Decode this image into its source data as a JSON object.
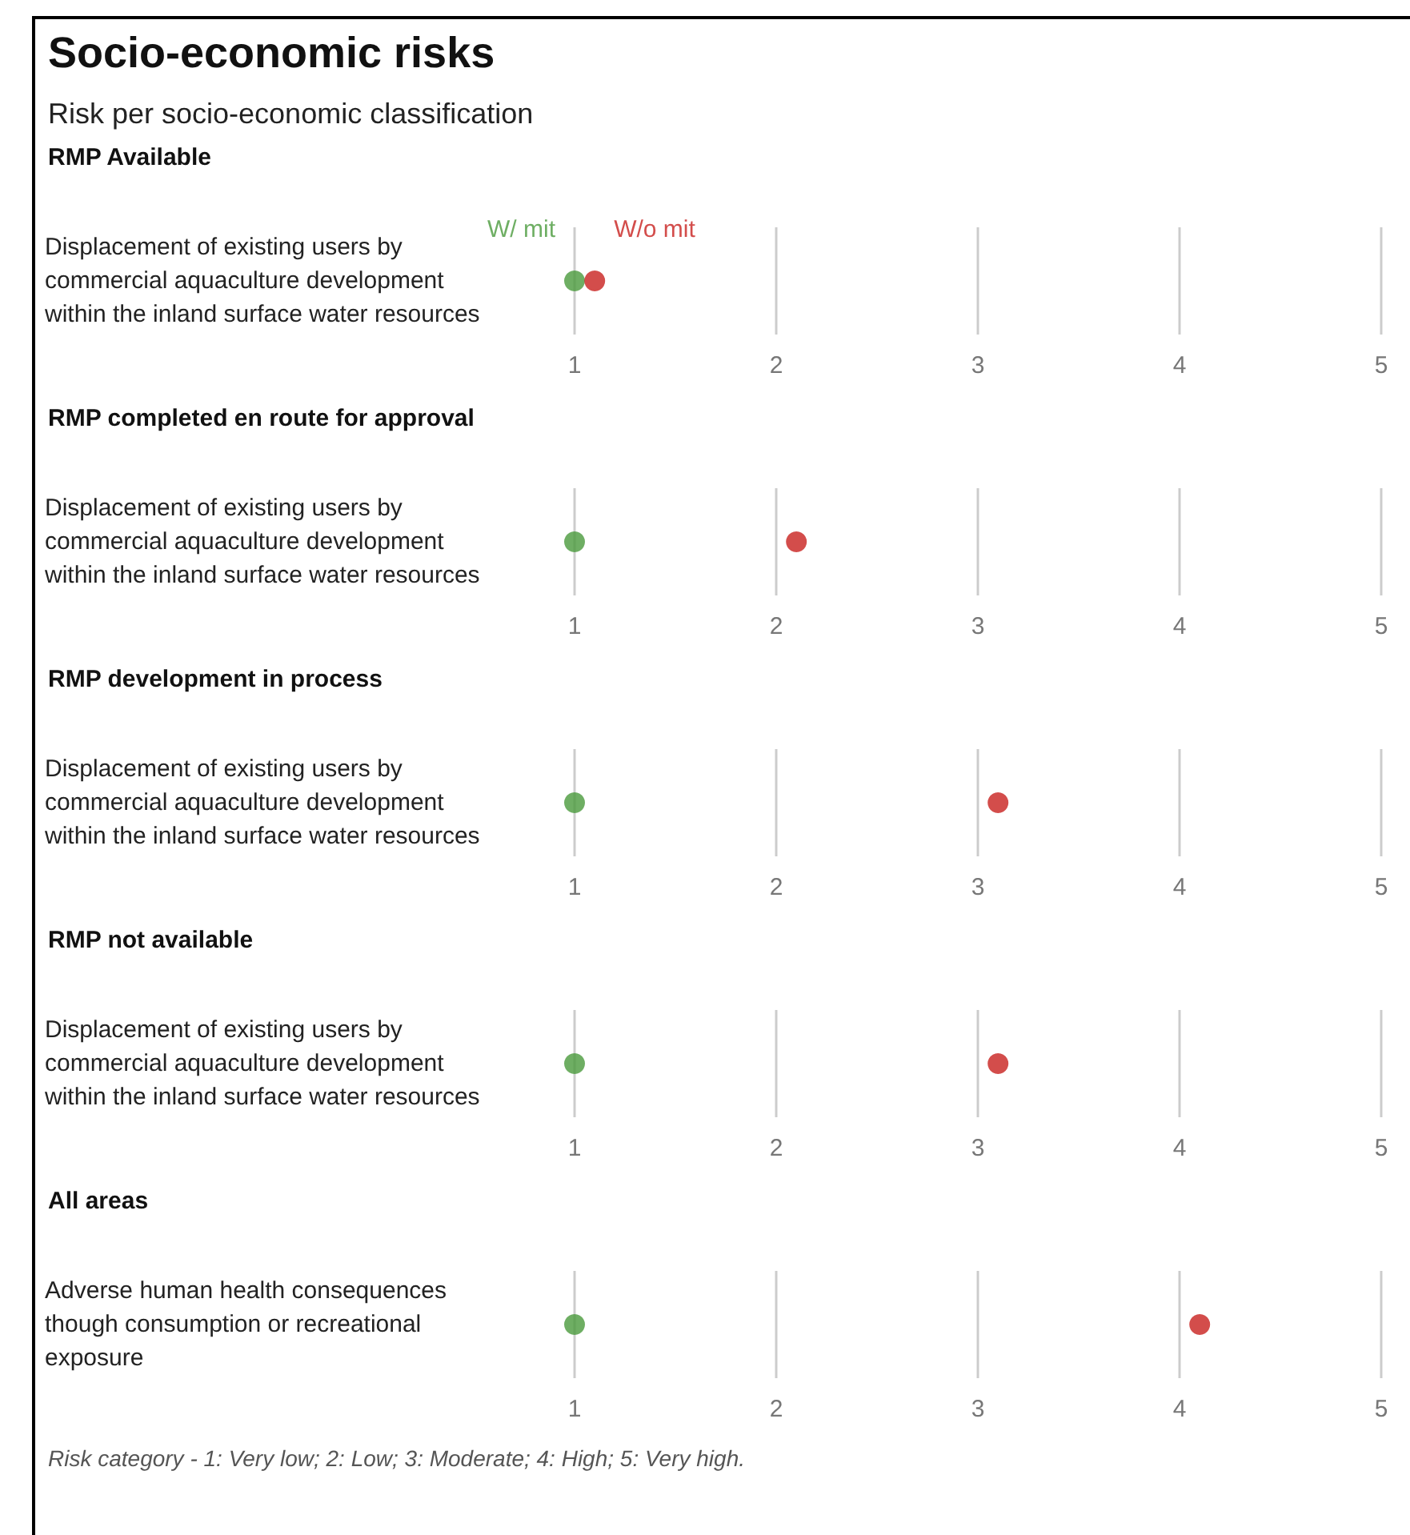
{
  "chart_data": [
    {
      "type": "scatter",
      "title": "Socio-economic risks",
      "annotations": [
        "Risk per socio-economic classification"
      ],
      "subtitle": "RMP Available",
      "orientation": "horizontal",
      "categories": [
        "Displacement of existing users by commercial aquaculture development within the inland surface water resources"
      ],
      "series": [
        {
          "name": "W/ mit",
          "color": "#4a9a3c",
          "values": [
            1
          ]
        },
        {
          "name": "W/o mit",
          "color": "#c8201e",
          "values": [
            1.1
          ]
        }
      ],
      "xlim": [
        1,
        5
      ],
      "xticks": [
        1,
        2,
        3,
        4,
        5
      ],
      "grid": "x",
      "marker": "circle"
    },
    {
      "type": "scatter",
      "subtitle": "RMP completed en route for approval",
      "orientation": "horizontal",
      "categories": [
        "Displacement of existing users by commercial aquaculture development within the inland surface water resources"
      ],
      "series": [
        {
          "color": "#4a9a3c",
          "values": [
            1
          ]
        },
        {
          "color": "#c8201e",
          "values": [
            2.1
          ]
        }
      ],
      "xlim": [
        1,
        5
      ],
      "xticks": [
        1,
        2,
        3,
        4,
        5
      ],
      "grid": "x",
      "marker": "circle"
    },
    {
      "type": "scatter",
      "subtitle": "RMP development in process",
      "orientation": "horizontal",
      "categories": [
        "Displacement of existing users by commercial aquaculture development within the inland surface water resources"
      ],
      "series": [
        {
          "color": "#4a9a3c",
          "values": [
            1
          ]
        },
        {
          "color": "#c8201e",
          "values": [
            3.1
          ]
        }
      ],
      "xlim": [
        1,
        5
      ],
      "xticks": [
        1,
        2,
        3,
        4,
        5
      ],
      "grid": "x",
      "marker": "circle"
    },
    {
      "type": "scatter",
      "subtitle": "RMP not available",
      "orientation": "horizontal",
      "categories": [
        "Displacement of existing users by commercial aquaculture development within the inland surface water resources"
      ],
      "series": [
        {
          "color": "#4a9a3c",
          "values": [
            1
          ]
        },
        {
          "color": "#c8201e",
          "values": [
            3.1
          ]
        }
      ],
      "xlim": [
        1,
        5
      ],
      "xticks": [
        1,
        2,
        3,
        4,
        5
      ],
      "grid": "x",
      "marker": "circle"
    },
    {
      "type": "scatter",
      "subtitle": "All areas",
      "orientation": "horizontal",
      "categories": [
        "Adverse human health consequences though consumption or recreational exposure"
      ],
      "series": [
        {
          "color": "#4a9a3c",
          "values": [
            1
          ]
        },
        {
          "color": "#c8201e",
          "values": [
            4.1
          ]
        }
      ],
      "xlim": [
        1,
        5
      ],
      "xticks": [
        1,
        2,
        3,
        4,
        5
      ],
      "grid": "x",
      "marker": "circle",
      "annotations": [
        "Risk category - 1: Very low; 2: Low; 3: Moderate; 4: High; 5: Very high."
      ]
    }
  ]
}
